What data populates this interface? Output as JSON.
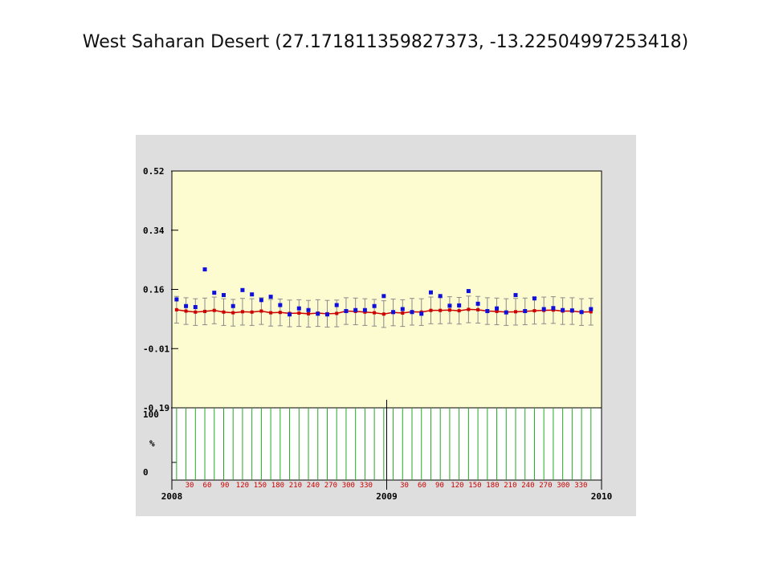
{
  "slide": {
    "title": "West Saharan Desert (27.171811359827373, -13.22504997253418)"
  },
  "colors": {
    "plot_bg": "#fdfbd0",
    "panel_bg": "#dedede",
    "obs_marker": "#1010dd",
    "model_line": "#cc0000",
    "error_bar": "#8a8a8a",
    "coverage_bar": "#22aa22"
  },
  "chart_data": [
    {
      "type": "scatter",
      "title": "",
      "xlabel": "",
      "ylabel": "",
      "ylim": [
        -0.19,
        0.52
      ],
      "y_ticks": [
        "0.52",
        "0.34",
        "0.16",
        "-0.01",
        "-0.19"
      ],
      "x_major_labels": [
        "2008",
        "2009",
        "2010"
      ],
      "x_minor_labels": [
        "30",
        "60",
        "90",
        "120",
        "150",
        "180",
        "210",
        "240",
        "270",
        "300",
        "330"
      ],
      "x_day_of_year": [
        8,
        24,
        40,
        56,
        72,
        88,
        104,
        120,
        136,
        152,
        168,
        184,
        200,
        216,
        232,
        248,
        264,
        280,
        296,
        312,
        328,
        344,
        360,
        376,
        392,
        408,
        424,
        440,
        456,
        472,
        488,
        504,
        520,
        536,
        552,
        568,
        584,
        600,
        616,
        632,
        648,
        664,
        680,
        696,
        712
      ],
      "series": [
        {
          "marker": "square",
          "color": "#1010dd",
          "values": [
            0.135,
            0.115,
            0.112,
            0.225,
            0.155,
            0.148,
            0.115,
            0.163,
            0.15,
            0.133,
            0.143,
            0.118,
            0.09,
            0.108,
            0.103,
            0.092,
            0.09,
            0.118,
            0.1,
            0.103,
            0.103,
            0.115,
            0.145,
            0.097,
            0.106,
            0.097,
            0.092,
            0.156,
            0.145,
            0.116,
            0.117,
            0.16,
            0.122,
            0.1,
            0.108,
            0.096,
            0.148,
            0.1,
            0.138,
            0.106,
            0.109,
            0.103,
            0.102,
            0.097,
            0.106
          ]
        },
        {
          "marker": "line",
          "color": "#cc0000",
          "values": [
            0.104,
            0.1,
            0.097,
            0.099,
            0.102,
            0.097,
            0.095,
            0.098,
            0.097,
            0.1,
            0.095,
            0.096,
            0.093,
            0.094,
            0.092,
            0.094,
            0.092,
            0.093,
            0.1,
            0.099,
            0.097,
            0.095,
            0.091,
            0.096,
            0.094,
            0.098,
            0.097,
            0.102,
            0.102,
            0.103,
            0.101,
            0.105,
            0.104,
            0.1,
            0.099,
            0.097,
            0.098,
            0.099,
            0.101,
            0.102,
            0.103,
            0.1,
            0.1,
            0.097,
            0.098
          ]
        }
      ],
      "error_bar_halfwidth": 0.04
    },
    {
      "type": "bar",
      "ylim": [
        0,
        100
      ],
      "y_ticks": [
        "100",
        "%",
        "0"
      ],
      "x_day_of_year": [
        8,
        24,
        40,
        56,
        72,
        88,
        104,
        120,
        136,
        152,
        168,
        184,
        200,
        216,
        232,
        248,
        264,
        280,
        296,
        312,
        328,
        344,
        360,
        376,
        392,
        408,
        424,
        440,
        456,
        472,
        488,
        504,
        520,
        536,
        552,
        568,
        584,
        600,
        616,
        632,
        648,
        664,
        680,
        696,
        712
      ],
      "values": [
        100,
        100,
        100,
        100,
        100,
        100,
        100,
        100,
        100,
        100,
        100,
        100,
        100,
        100,
        100,
        100,
        100,
        100,
        100,
        100,
        100,
        100,
        100,
        100,
        100,
        100,
        100,
        100,
        100,
        100,
        100,
        100,
        100,
        100,
        100,
        100,
        100,
        100,
        100,
        100,
        100,
        100,
        100,
        100,
        100
      ]
    }
  ]
}
